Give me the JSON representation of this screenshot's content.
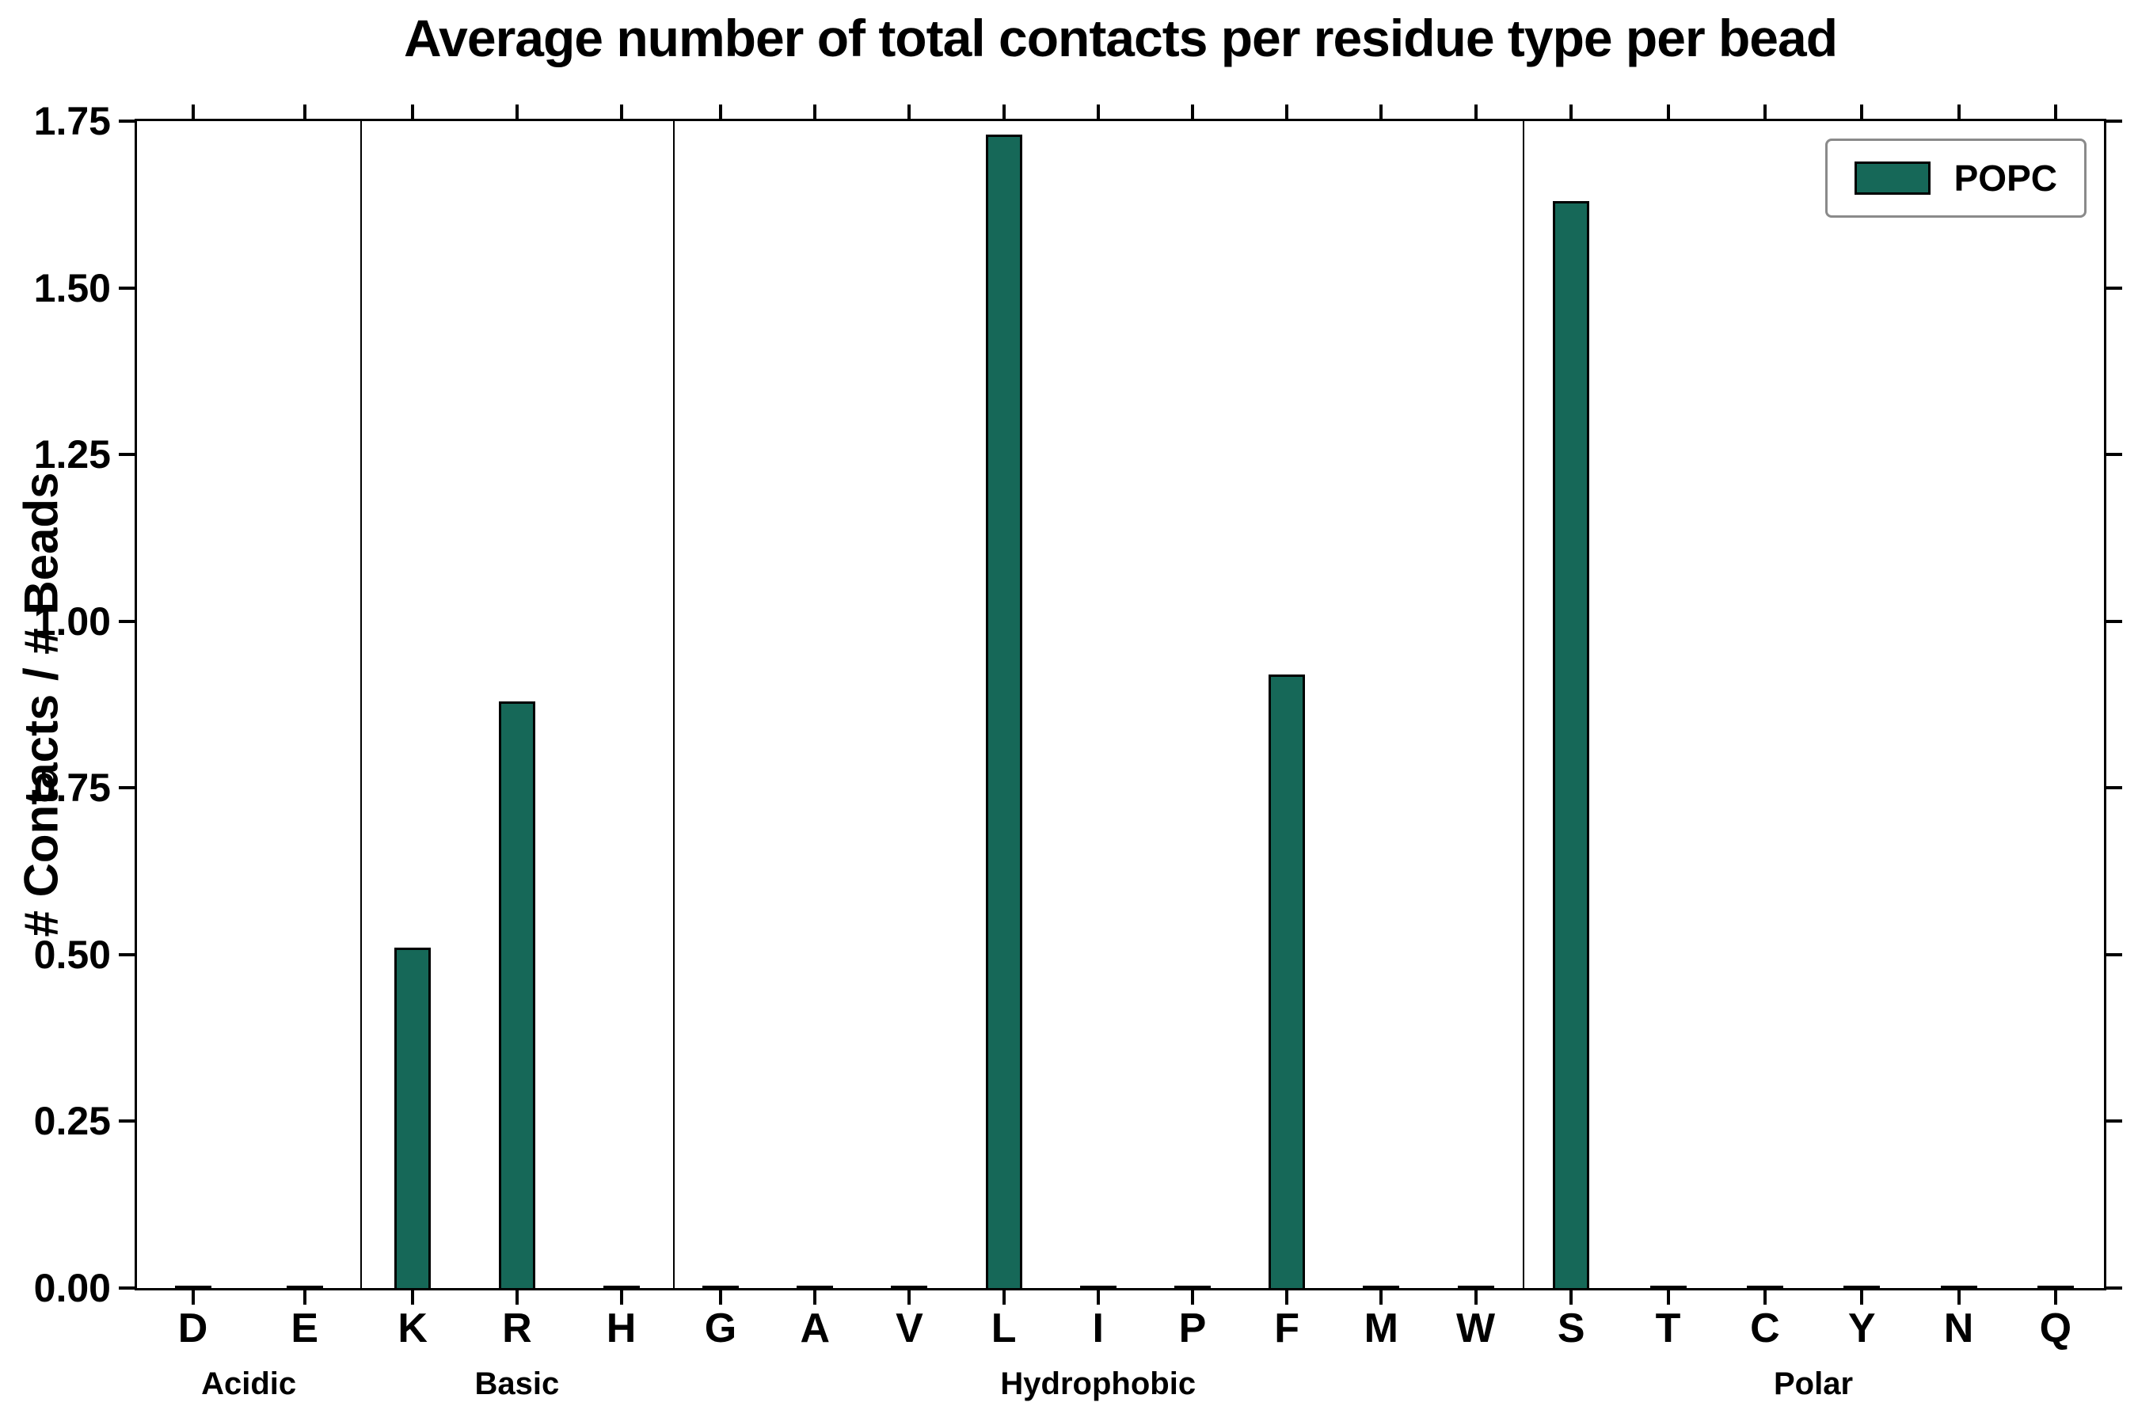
{
  "chart_data": {
    "type": "bar",
    "title": "Average number of total contacts per residue type per bead",
    "ylabel": "# Contacts / # Beads",
    "xlabel": "",
    "ylim": [
      0,
      1.75
    ],
    "ytick_step": 0.25,
    "yticks": [
      "0.00",
      "0.25",
      "0.50",
      "0.75",
      "1.00",
      "1.25",
      "1.50",
      "1.75"
    ],
    "bar_color": "#166858",
    "grid": false,
    "legend": {
      "position": "top-right",
      "entries": [
        {
          "label": "POPC",
          "color": "#166858"
        }
      ]
    },
    "groups": [
      {
        "label": "Acidic",
        "residues": [
          "D",
          "E"
        ],
        "values": [
          0,
          0
        ]
      },
      {
        "label": "Basic",
        "residues": [
          "K",
          "R",
          "H"
        ],
        "values": [
          0.51,
          0.88,
          0
        ]
      },
      {
        "label": "Hydrophobic",
        "residues": [
          "G",
          "A",
          "V",
          "L",
          "I",
          "P",
          "F",
          "M",
          "W"
        ],
        "values": [
          0,
          0,
          0,
          1.73,
          0,
          0,
          0.92,
          0,
          0
        ]
      },
      {
        "label": "Polar",
        "residues": [
          "S",
          "T",
          "C",
          "Y",
          "N",
          "Q"
        ],
        "values": [
          1.63,
          0,
          0,
          0,
          0,
          0
        ]
      }
    ]
  }
}
